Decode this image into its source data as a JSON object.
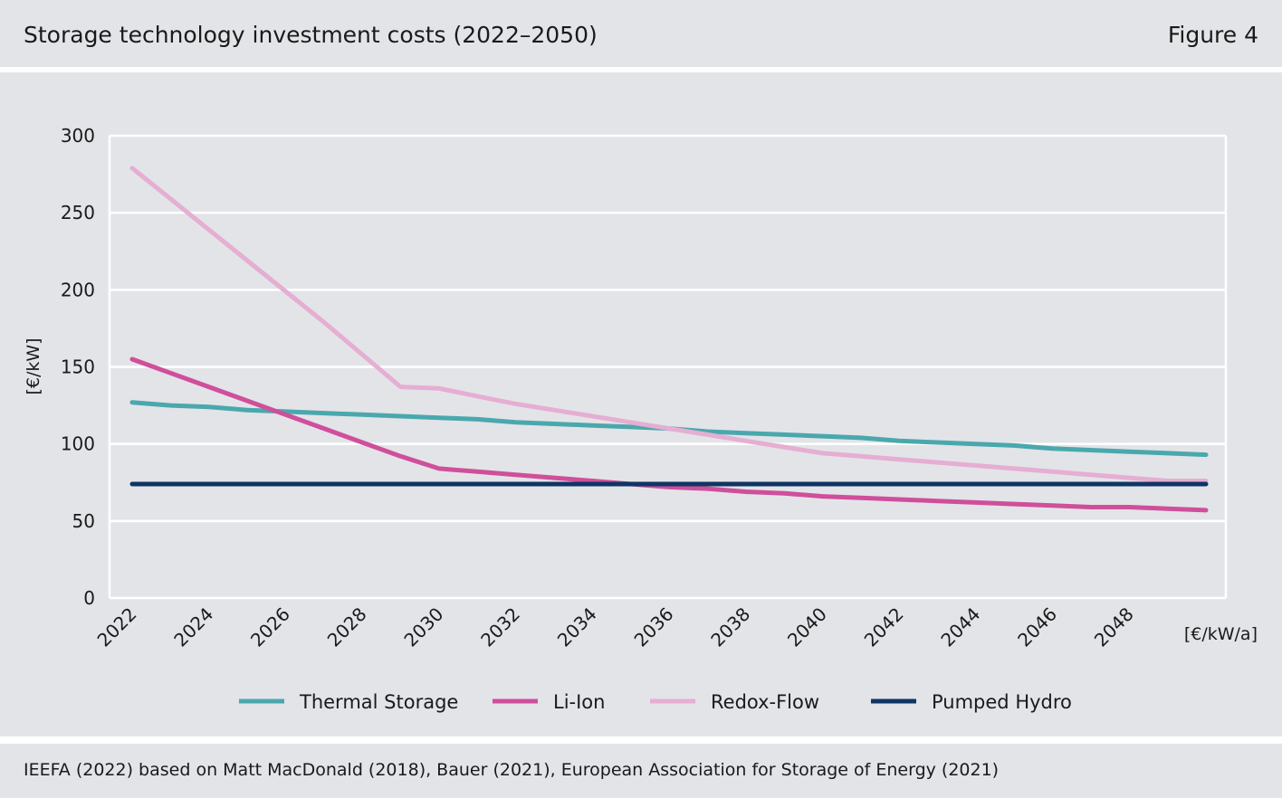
{
  "header": {
    "title": "Storage technology investment costs (2022–2050)",
    "figure_label": "Figure 4"
  },
  "footer": {
    "source": "IEEFA (2022) based on Matt MacDonald (2018), Bauer (2021), European Association for Storage of Energy (2021)"
  },
  "colors": {
    "background": "#e3e4e8",
    "grid": "#ffffff",
    "Thermal Storage": "#4aa8ad",
    "Li-Ion": "#cf4f9c",
    "Redox-Flow": "#e5aed2",
    "Pumped Hydro": "#0f3564"
  },
  "chart_data": {
    "type": "line",
    "title": "Storage technology investment costs (2022–2050)",
    "ylabel": "[€/kW]",
    "xlabel": "[€/kW/a]",
    "ylim": [
      0,
      300
    ],
    "yticks": [
      0,
      50,
      100,
      150,
      200,
      250,
      300
    ],
    "x": [
      2022,
      2023,
      2024,
      2025,
      2026,
      2027,
      2028,
      2029,
      2030,
      2031,
      2032,
      2033,
      2034,
      2035,
      2036,
      2037,
      2038,
      2039,
      2040,
      2041,
      2042,
      2043,
      2044,
      2045,
      2046,
      2047,
      2048,
      2049,
      2050
    ],
    "xticks": [
      "2022",
      "2024",
      "2026",
      "2028",
      "2030",
      "2032",
      "2034",
      "2036",
      "2038",
      "2040",
      "2042",
      "2044",
      "2046",
      "2048"
    ],
    "grid": true,
    "legend_position": "bottom",
    "series": [
      {
        "name": "Thermal Storage",
        "values": [
          127,
          125,
          124,
          122,
          121,
          120,
          119,
          118,
          117,
          116,
          114,
          113,
          112,
          111,
          110,
          108,
          107,
          106,
          105,
          104,
          102,
          101,
          100,
          99,
          97,
          96,
          95,
          94,
          93
        ]
      },
      {
        "name": "Li-Ion",
        "values": [
          155,
          146,
          137,
          128,
          119,
          110,
          101,
          92,
          84,
          82,
          80,
          78,
          76,
          74,
          72,
          71,
          69,
          68,
          66,
          65,
          64,
          63,
          62,
          61,
          60,
          59,
          59,
          58,
          57
        ]
      },
      {
        "name": "Redox-Flow",
        "values": [
          279,
          259,
          239,
          219,
          199,
          179,
          158,
          137,
          136,
          131,
          126,
          122,
          118,
          114,
          110,
          106,
          102,
          98,
          94,
          92,
          90,
          88,
          86,
          84,
          82,
          80,
          78,
          76,
          76
        ]
      },
      {
        "name": "Pumped Hydro",
        "values": [
          74,
          74,
          74,
          74,
          74,
          74,
          74,
          74,
          74,
          74,
          74,
          74,
          74,
          74,
          74,
          74,
          74,
          74,
          74,
          74,
          74,
          74,
          74,
          74,
          74,
          74,
          74,
          74,
          74
        ]
      }
    ]
  }
}
